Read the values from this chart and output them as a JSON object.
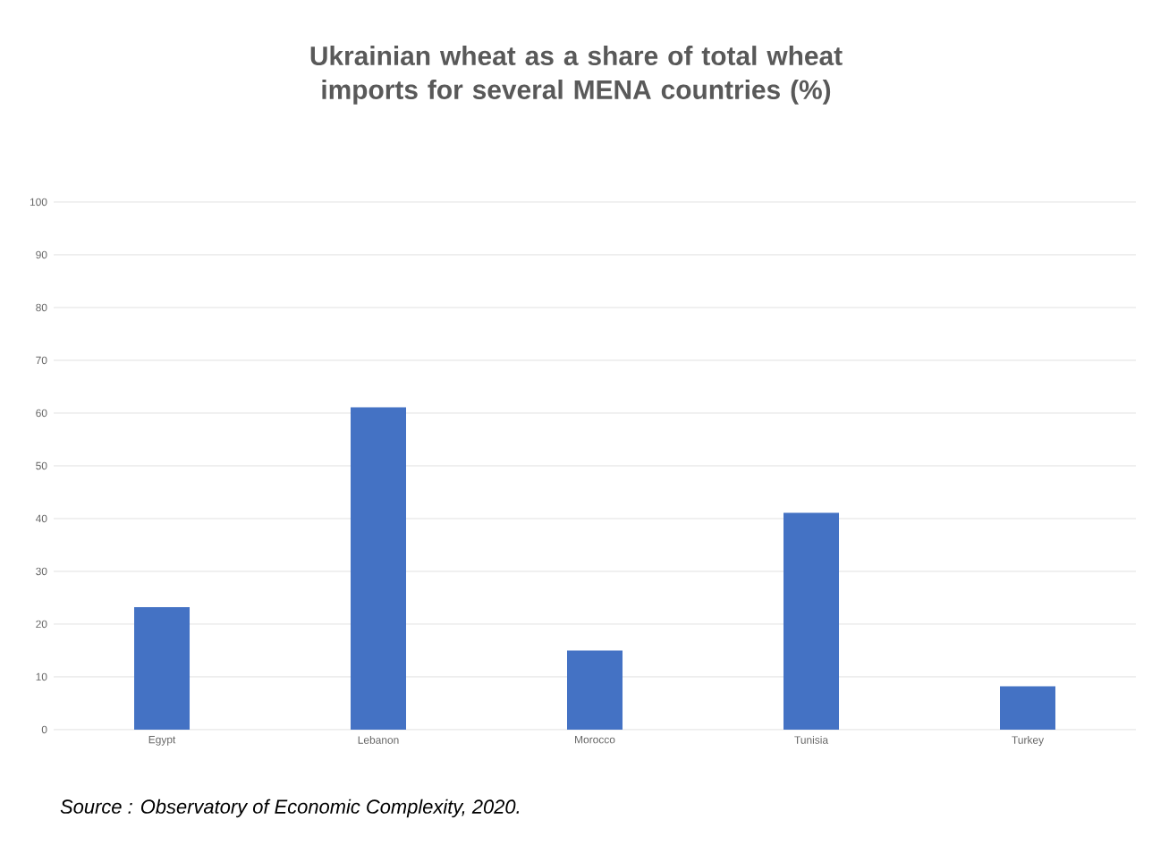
{
  "chart_data": {
    "type": "bar",
    "title": "Ukrainian wheat as a share of total wheat imports for several MENA countries (%)",
    "categories": [
      "Egypt",
      "Lebanon",
      "Morocco",
      "Tunisia",
      "Turkey"
    ],
    "values": [
      23.2,
      61.1,
      15.0,
      41.1,
      8.2
    ],
    "color": "#4472c4",
    "ylim": [
      0,
      100
    ],
    "yticks": [
      0,
      10,
      20,
      30,
      40,
      50,
      60,
      70,
      80,
      90,
      100
    ],
    "grid": "y",
    "annotations": [
      "Source : Observatory of Economic Complexity, 2020."
    ]
  }
}
